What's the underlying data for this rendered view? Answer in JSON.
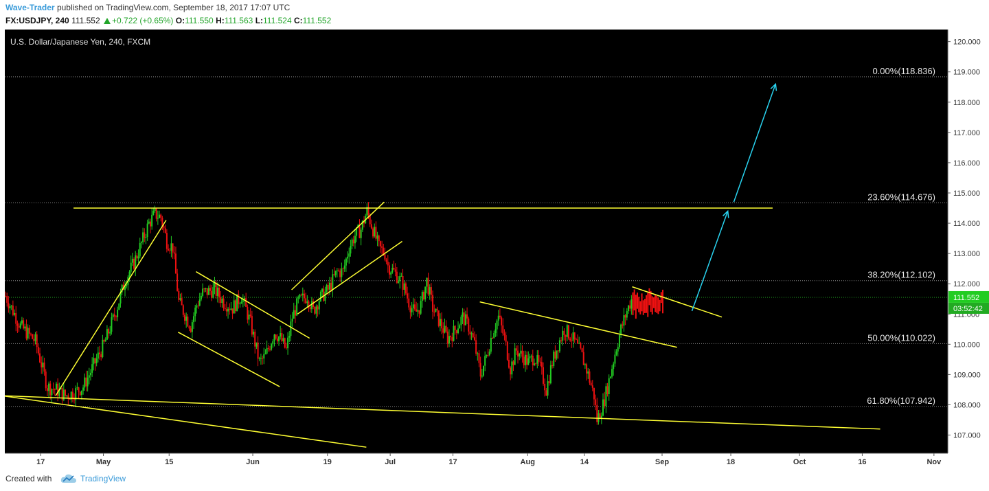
{
  "header": {
    "author": "Wave-Trader",
    "published_text": "published on TradingView.com, September 18, 2017 17:07 UTC",
    "symbol": "FX:USDJPY, 240",
    "last": "111.552",
    "change": "+0.722 (+0.65%)",
    "open_label": "O:",
    "open": "111.550",
    "high_label": "H:",
    "high": "111.563",
    "low_label": "L:",
    "low": "111.524",
    "close_label": "C:",
    "close": "111.552"
  },
  "footer": {
    "created_with": "Created with",
    "brand": "TradingView"
  },
  "colors": {
    "background": "#000000",
    "up": "#22cc22",
    "down": "#ee1111",
    "trendline": "#ffff33",
    "arrow": "#29d3f0",
    "gridline": "#888888",
    "current_price_line": "#1fa31f"
  },
  "chart_data": {
    "type": "candlestick",
    "title": "U.S. Dollar/Japanese Yen, 240, FXCM",
    "ylim": [
      106.4,
      120.4
    ],
    "y_ticks": [
      "120.000",
      "119.000",
      "118.000",
      "117.000",
      "116.000",
      "115.000",
      "114.000",
      "113.000",
      "112.000",
      "111.000",
      "110.000",
      "109.000",
      "108.000",
      "107.000"
    ],
    "x_ticks": [
      "17",
      "May",
      "15",
      "Jun",
      "19",
      "Jul",
      "17",
      "Aug",
      "14",
      "Sep",
      "18",
      "Oct",
      "16",
      "Nov"
    ],
    "price_path": [
      [
        0,
        111.6
      ],
      [
        5,
        110.6
      ],
      [
        10,
        110.1
      ],
      [
        14,
        108.6
      ],
      [
        17,
        108.5
      ],
      [
        20,
        108.3
      ],
      [
        23,
        108.4
      ],
      [
        26,
        108.6
      ],
      [
        29,
        109.2
      ],
      [
        33,
        110.0
      ],
      [
        37,
        111.1
      ],
      [
        40,
        112.1
      ],
      [
        43,
        112.7
      ],
      [
        45,
        113.2
      ],
      [
        48,
        114.0
      ],
      [
        50,
        114.3
      ],
      [
        52,
        114.2
      ],
      [
        54,
        113.4
      ],
      [
        56,
        113.2
      ],
      [
        58,
        111.4
      ],
      [
        60,
        111.0
      ],
      [
        62,
        110.6
      ],
      [
        64,
        111.3
      ],
      [
        66,
        111.7
      ],
      [
        70,
        111.8
      ],
      [
        73,
        111.4
      ],
      [
        76,
        111.2
      ],
      [
        79,
        111.6
      ],
      [
        82,
        110.7
      ],
      [
        85,
        109.4
      ],
      [
        87,
        109.6
      ],
      [
        90,
        110.4
      ],
      [
        92,
        110.2
      ],
      [
        94,
        109.8
      ],
      [
        96,
        110.9
      ],
      [
        98,
        111.4
      ],
      [
        101,
        111.6
      ],
      [
        103,
        111.1
      ],
      [
        105,
        111.5
      ],
      [
        108,
        111.8
      ],
      [
        111,
        112.4
      ],
      [
        113,
        112.4
      ],
      [
        115,
        113.2
      ],
      [
        117,
        113.6
      ],
      [
        119,
        113.8
      ],
      [
        121,
        114.4
      ],
      [
        123,
        113.8
      ],
      [
        125,
        113.2
      ],
      [
        127,
        113.0
      ],
      [
        128,
        112.6
      ],
      [
        130,
        112.4
      ],
      [
        133,
        112.0
      ],
      [
        135,
        111.4
      ],
      [
        137,
        111.0
      ],
      [
        139,
        111.3
      ],
      [
        141,
        112.1
      ],
      [
        143,
        111.2
      ],
      [
        145,
        110.8
      ],
      [
        148,
        110.2
      ],
      [
        150,
        110.4
      ],
      [
        153,
        110.9
      ],
      [
        155,
        110.6
      ],
      [
        157,
        110.0
      ],
      [
        159,
        109.0
      ],
      [
        161,
        109.6
      ],
      [
        163,
        110.4
      ],
      [
        165,
        110.9
      ],
      [
        167,
        110.2
      ],
      [
        169,
        109.2
      ],
      [
        171,
        109.8
      ],
      [
        173,
        109.6
      ],
      [
        175,
        109.4
      ],
      [
        177,
        109.6
      ],
      [
        179,
        109.2
      ],
      [
        181,
        108.5
      ],
      [
        183,
        109.4
      ],
      [
        185,
        110.0
      ],
      [
        187,
        110.5
      ],
      [
        189,
        110.3
      ],
      [
        191,
        110.0
      ],
      [
        193,
        109.6
      ],
      [
        195,
        109.0
      ],
      [
        197,
        108.3
      ],
      [
        198,
        107.5
      ],
      [
        200,
        108.0
      ],
      [
        202,
        108.8
      ],
      [
        204,
        109.7
      ],
      [
        206,
        110.5
      ],
      [
        208,
        111.1
      ],
      [
        210,
        111.6
      ]
    ],
    "projection_bars": {
      "x_range": [
        210,
        220
      ],
      "high": 111.8,
      "low": 110.8
    },
    "fibonacci": [
      {
        "label": "0.00%(118.836)",
        "value": 118.836
      },
      {
        "label": "23.60%(114.676)",
        "value": 114.676
      },
      {
        "label": "38.20%(112.102)",
        "value": 112.102
      },
      {
        "label": "50.00%(110.022)",
        "value": 110.022
      },
      {
        "label": "61.80%(107.942)",
        "value": 107.942
      }
    ],
    "trendlines": [
      [
        [
          -1,
          108.3
        ],
        [
          293,
          107.2
        ]
      ],
      [
        [
          -1,
          108.3
        ],
        [
          121,
          106.6
        ]
      ],
      [
        [
          23,
          114.5
        ],
        [
          257,
          114.5
        ]
      ],
      [
        [
          17,
          108.3
        ],
        [
          54,
          114.1
        ]
      ],
      [
        [
          58,
          110.4
        ],
        [
          92,
          108.6
        ]
      ],
      [
        [
          64,
          112.4
        ],
        [
          102,
          110.2
        ]
      ],
      [
        [
          96,
          111.8
        ],
        [
          127,
          114.7
        ]
      ],
      [
        [
          98,
          111.0
        ],
        [
          133,
          113.4
        ]
      ],
      [
        [
          159,
          111.4
        ],
        [
          225,
          109.9
        ]
      ],
      [
        [
          210,
          111.9
        ],
        [
          240,
          110.9
        ]
      ]
    ],
    "arrows": [
      [
        [
          230,
          111.1
        ],
        [
          242,
          114.4
        ]
      ],
      [
        [
          244,
          114.7
        ],
        [
          258,
          118.6
        ]
      ]
    ],
    "current_price": {
      "value": 111.552,
      "label": "111.552",
      "countdown": "03:52:42"
    }
  }
}
